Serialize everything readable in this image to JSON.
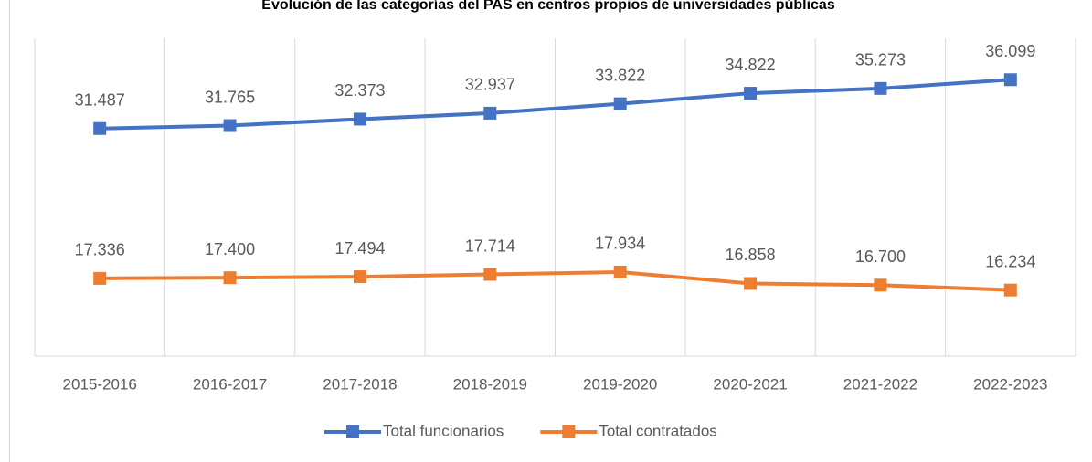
{
  "chart_data": {
    "type": "line",
    "title": "Evolución de las categorías del PAS en centros propios de universidades públicas",
    "categories": [
      "2015-2016",
      "2016-2017",
      "2017-2018",
      "2018-2019",
      "2019-2020",
      "2020-2021",
      "2021-2022",
      "2022-2023"
    ],
    "series": [
      {
        "name": "Total funcionarios",
        "color": "#4472c4",
        "values": [
          31487,
          31765,
          32373,
          32937,
          33822,
          34822,
          35273,
          36099
        ],
        "value_labels": [
          "31.487",
          "31.765",
          "32.373",
          "32.937",
          "33.822",
          "34.822",
          "35.273",
          "36.099"
        ]
      },
      {
        "name": "Total contratados",
        "color": "#ed7d31",
        "values": [
          17336,
          17400,
          17494,
          17714,
          17934,
          16858,
          16700,
          16234
        ],
        "value_labels": [
          "17.336",
          "17.400",
          "17.494",
          "17.714",
          "17.934",
          "16.858",
          "16.700",
          "16.234"
        ]
      }
    ],
    "ylim": [
      10000,
      40000
    ],
    "legend": "bottom"
  }
}
